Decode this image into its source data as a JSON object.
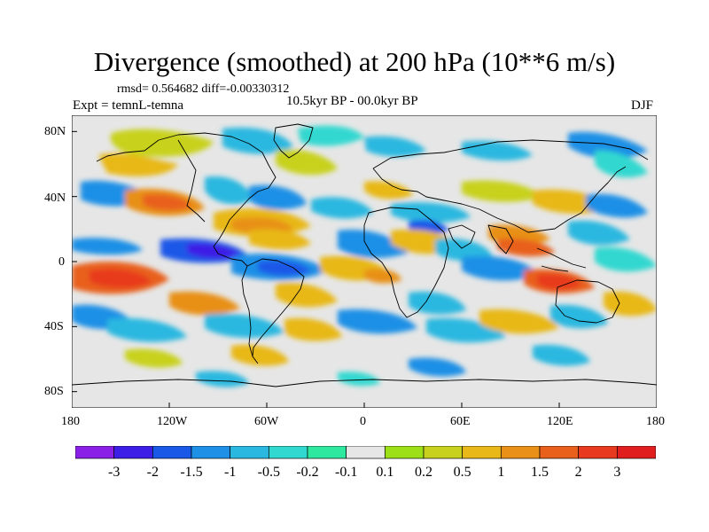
{
  "title": "Divergence (smoothed) at 200 hPa (10**6 m/s)",
  "stats": {
    "rmsd_label": "rmsd=",
    "rmsd": "0.564682",
    "diff_label": "diff=",
    "diff": "-0.00330312"
  },
  "experiment": "Expt = temnL-temna",
  "period": "10.5kyr BP - 00.0kyr BP",
  "season": "DJF",
  "map": {
    "lat_ticks": [
      "80N",
      "40N",
      "0",
      "40S",
      "80S"
    ],
    "lon_ticks": [
      "180",
      "120W",
      "60W",
      "0",
      "60E",
      "120E",
      "180"
    ],
    "lat_values": [
      80,
      40,
      0,
      -40,
      -80
    ],
    "lon_values": [
      -180,
      -120,
      -60,
      0,
      60,
      120,
      180
    ]
  },
  "colorbar": {
    "labels": [
      "-3",
      "-2",
      "-1.5",
      "-1",
      "-0.5",
      "-0.2",
      "-0.1",
      "0.1",
      "0.2",
      "0.5",
      "1",
      "1.5",
      "2",
      "3"
    ],
    "colors": [
      "#8a1fe8",
      "#3c1ee6",
      "#1a58e8",
      "#1e90e6",
      "#2ab8e0",
      "#30d8d0",
      "#2ee8a0",
      "#e6e6e6",
      "#9ee018",
      "#c8d21e",
      "#e8b818",
      "#e89018",
      "#e8601c",
      "#e83a1e",
      "#e01e1e"
    ]
  },
  "colors": {
    "neutral": "#e6e6e6",
    "coast": "#000000",
    "background": "#ffffff"
  }
}
